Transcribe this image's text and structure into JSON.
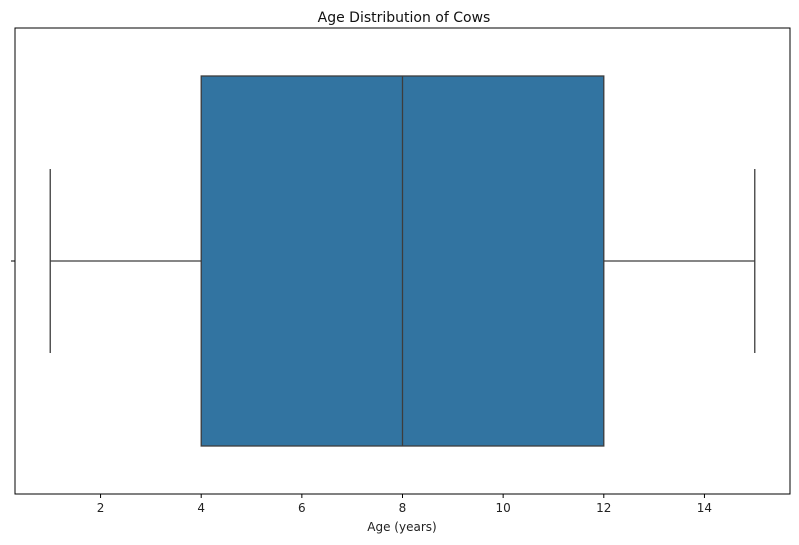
{
  "chart_data": {
    "type": "box",
    "title": "Age Distribution of Cows",
    "xlabel": "Age (years)",
    "ylabel": "",
    "orientation": "horizontal",
    "xlim": [
      0.3,
      15.7
    ],
    "xticks": [
      2,
      4,
      6,
      8,
      10,
      12,
      14
    ],
    "box": {
      "whisker_low": 1,
      "q1": 4,
      "median": 8,
      "q3": 12,
      "whisker_high": 15
    },
    "grid": false,
    "colors": {
      "box_fill": "#3274a1",
      "line": "#3d3d3d",
      "axes": "#000000"
    }
  }
}
